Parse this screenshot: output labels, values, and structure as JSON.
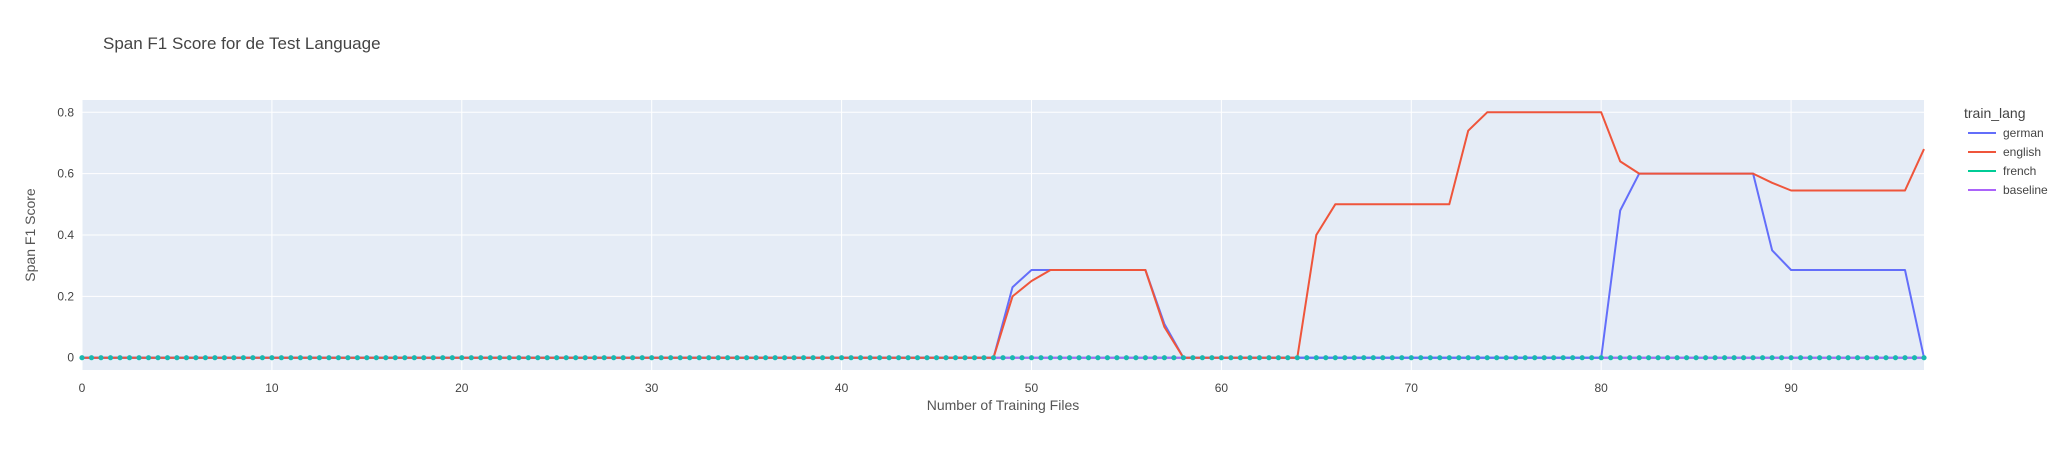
{
  "chart_data": {
    "type": "line",
    "title": "Span F1 Score for de Test Language",
    "xlabel": "Number of Training Files",
    "ylabel": "Span F1 Score",
    "xlim": [
      0,
      97
    ],
    "ylim": [
      -0.04,
      0.84
    ],
    "xticks": [
      0,
      10,
      20,
      30,
      40,
      50,
      60,
      70,
      80,
      90
    ],
    "xtick_labels": [
      "0",
      "10",
      "20",
      "30",
      "40",
      "50",
      "60",
      "70",
      "80",
      "90"
    ],
    "yticks": [
      0,
      0.2,
      0.4,
      0.6,
      0.8
    ],
    "ytick_labels": [
      "0",
      "0.2",
      "0.4",
      "0.6",
      "0.8"
    ],
    "grid": true,
    "legend_title": "train_lang",
    "legend_position": "right",
    "series": [
      {
        "name": "german",
        "color": "#636efa",
        "points": [
          [
            0,
            0
          ],
          [
            48,
            0
          ],
          [
            49,
            0.23
          ],
          [
            50,
            0.286
          ],
          [
            51,
            0.286
          ],
          [
            56,
            0.286
          ],
          [
            57,
            0.11
          ],
          [
            58,
            0
          ],
          [
            80,
            0
          ],
          [
            81,
            0.48
          ],
          [
            82,
            0.6
          ],
          [
            88,
            0.6
          ],
          [
            89,
            0.35
          ],
          [
            90,
            0.286
          ],
          [
            96,
            0.286
          ],
          [
            97,
            0
          ]
        ]
      },
      {
        "name": "english",
        "color": "#ef553b",
        "points": [
          [
            0,
            0
          ],
          [
            48,
            0
          ],
          [
            49,
            0.2
          ],
          [
            50,
            0.25
          ],
          [
            51,
            0.286
          ],
          [
            56,
            0.286
          ],
          [
            57,
            0.1
          ],
          [
            58,
            0
          ],
          [
            64,
            0
          ],
          [
            65,
            0.4
          ],
          [
            66,
            0.5
          ],
          [
            72,
            0.5
          ],
          [
            73,
            0.74
          ],
          [
            74,
            0.8
          ],
          [
            80,
            0.8
          ],
          [
            81,
            0.64
          ],
          [
            82,
            0.6
          ],
          [
            88,
            0.6
          ],
          [
            89,
            0.57
          ],
          [
            90,
            0.545
          ],
          [
            96,
            0.545
          ],
          [
            97,
            0.68
          ]
        ]
      },
      {
        "name": "french",
        "color": "#00cc96",
        "points": [
          [
            0,
            0
          ],
          [
            97,
            0
          ]
        ]
      },
      {
        "name": "baseline",
        "color": "#ab63fa",
        "points": [
          [
            0,
            0
          ],
          [
            97,
            0
          ]
        ]
      }
    ],
    "baseline_markers_color": "#19b8b0"
  }
}
